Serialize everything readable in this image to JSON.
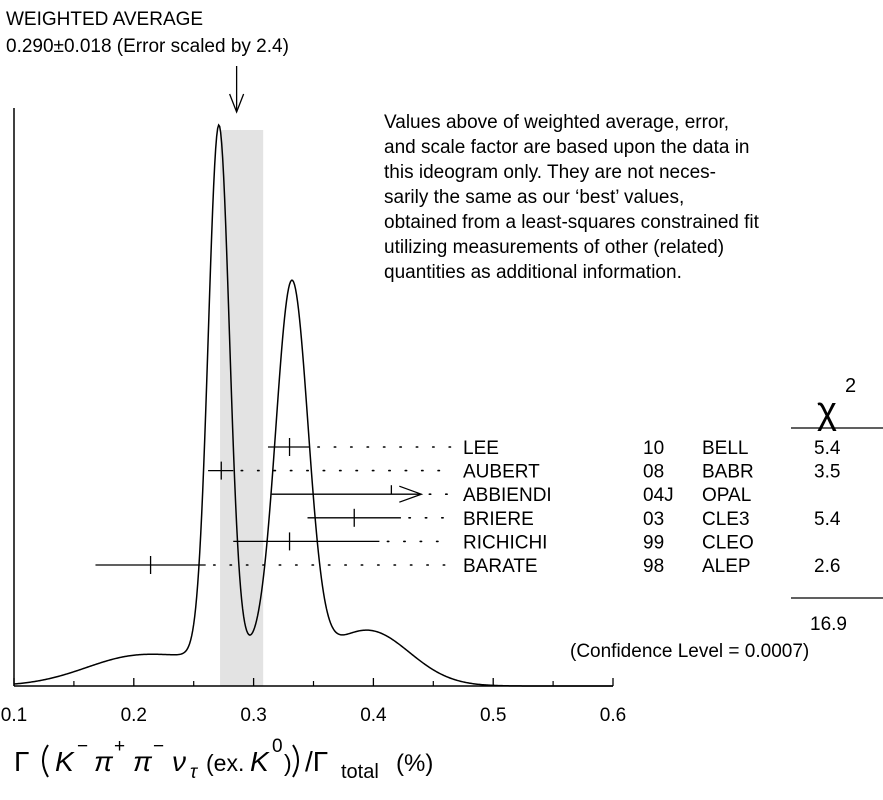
{
  "chart_data": {
    "type": "ideogram",
    "average": {
      "heading": "WEIGHTED AVERAGE",
      "value_line": "0.290±0.018 (Error scaled by 2.4)",
      "value": 0.29,
      "error": 0.018,
      "band": [
        0.272,
        0.308
      ]
    },
    "note_lines": [
      "Values above of weighted average, error,",
      "and scale factor are based upon the data in",
      "this ideogram only.  They are not neces-",
      "sarily the same as our ‘best’ values,",
      "obtained from a least-squares constrained fit",
      "utilizing measurements of other (related)",
      "quantities as additional information."
    ],
    "chi2_header": "χ",
    "chi2_header_sup": "2",
    "measurements": [
      {
        "author": "LEE",
        "year": "10",
        "experiment": "BELL",
        "chi2": "5.4",
        "value": 0.33,
        "low": 0.312,
        "high": 0.347,
        "type": "point"
      },
      {
        "author": "AUBERT",
        "year": "08",
        "experiment": "BABR",
        "chi2": "3.5",
        "value": 0.273,
        "low": 0.262,
        "high": 0.283,
        "type": "point"
      },
      {
        "author": "ABBIENDI",
        "year": "04J",
        "experiment": "OPAL",
        "chi2": "",
        "value": 0.415,
        "low": 0.315,
        "high": 0.44,
        "type": "upper-limit-arrow"
      },
      {
        "author": "BRIERE",
        "year": "03",
        "experiment": "CLE3",
        "chi2": "5.4",
        "value": 0.384,
        "low": 0.345,
        "high": 0.423,
        "type": "point"
      },
      {
        "author": "RICHICHI",
        "year": "99",
        "experiment": "CLEO",
        "chi2": "",
        "value": 0.33,
        "low": 0.283,
        "high": 0.405,
        "type": "point"
      },
      {
        "author": "BARATE",
        "year": "98",
        "experiment": "ALEP",
        "chi2": "2.6",
        "value": 0.214,
        "low": 0.168,
        "high": 0.26,
        "type": "point"
      }
    ],
    "chi2_total": "16.9",
    "confidence": "(Confidence Level = 0.0007)",
    "x_ticks": [
      "0.1",
      "0.2",
      "0.3",
      "0.4",
      "0.5",
      "0.6"
    ],
    "xlim": [
      0.1,
      0.6
    ],
    "xlabel": {
      "gamma": "Γ",
      "k": "K",
      "k_sup": "−",
      "pi1": "π",
      "pi1_sup": "+",
      "pi2": "π",
      "pi2_sup": "−",
      "nu": "ν",
      "nu_sub": "τ",
      "ex": "(ex.",
      "k0": "K",
      "k0_sup": "0",
      "close": ")",
      "slash": "/Γ",
      "total": "total",
      "unit": "(%)"
    }
  }
}
